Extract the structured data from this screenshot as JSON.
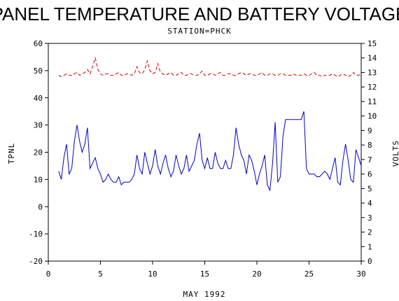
{
  "chart_data": {
    "type": "line",
    "title": "PANEL TEMPERATURE AND BATTERY VOLTAGE",
    "subtitle": "STATION=PHCK",
    "xlabel": "MAY 1992",
    "ylabel_left": "TPNL",
    "ylabel_right": "VOLTS",
    "xlim": [
      0,
      30
    ],
    "ylim_left": [
      -20,
      60
    ],
    "ylim_right": [
      0,
      15
    ],
    "x_ticks": [
      0,
      5,
      10,
      15,
      20,
      25,
      30
    ],
    "y_left_ticks": [
      -20,
      -10,
      0,
      10,
      20,
      30,
      40,
      50,
      60
    ],
    "y_right_ticks": [
      0,
      1,
      2,
      3,
      4,
      5,
      6,
      7,
      8,
      9,
      10,
      11,
      12,
      13,
      14,
      15
    ],
    "grid": false,
    "series": [
      {
        "axis": "left",
        "color": "#0000cc",
        "style": "solid",
        "x": [
          1.0,
          1.25,
          1.5,
          1.75,
          2.0,
          2.25,
          2.5,
          2.75,
          3.0,
          3.25,
          3.5,
          3.75,
          4.0,
          4.25,
          4.5,
          4.75,
          5.0,
          5.25,
          5.5,
          5.75,
          6.0,
          6.25,
          6.5,
          6.75,
          7.0,
          7.25,
          7.5,
          7.75,
          8.0,
          8.25,
          8.5,
          8.75,
          9.0,
          9.25,
          9.5,
          9.75,
          10.0,
          10.25,
          10.5,
          10.75,
          11.0,
          11.25,
          11.5,
          11.75,
          12.0,
          12.25,
          12.5,
          12.75,
          13.0,
          13.25,
          13.5,
          13.75,
          14.0,
          14.25,
          14.5,
          14.75,
          15.0,
          15.25,
          15.5,
          15.75,
          16.0,
          16.25,
          16.5,
          16.75,
          17.0,
          17.25,
          17.5,
          17.75,
          18.0,
          18.25,
          18.5,
          18.75,
          19.0,
          19.25,
          19.5,
          19.75,
          20.0,
          20.25,
          20.5,
          20.75,
          21.0,
          21.25,
          21.5,
          21.75,
          22.0,
          22.25,
          22.5,
          22.75,
          23.0,
          23.25,
          23.5,
          23.75,
          24.0,
          24.25,
          24.5,
          24.75,
          25.0,
          25.25,
          25.5,
          25.75,
          26.0,
          26.25,
          26.5,
          26.75,
          27.0,
          27.25,
          27.5,
          27.75,
          28.0,
          28.25,
          28.5,
          28.75,
          29.0,
          29.25,
          29.5,
          29.75,
          30.0
        ],
        "y": [
          13,
          10,
          18,
          23,
          12,
          14,
          24,
          30,
          24,
          20,
          23,
          29,
          14,
          16,
          18,
          14,
          12,
          9,
          10,
          12,
          10,
          9,
          9,
          11,
          8,
          9,
          9,
          9,
          10,
          12,
          19,
          14,
          12,
          20,
          16,
          12,
          15,
          21,
          15,
          12,
          16,
          19,
          14,
          11,
          13,
          19,
          15,
          12,
          14,
          19,
          13,
          15,
          17,
          23,
          27,
          17,
          14,
          18,
          14,
          14,
          20,
          16,
          14,
          14,
          17,
          14,
          14,
          19,
          29,
          23,
          19,
          17,
          12,
          19,
          17,
          13,
          8,
          12,
          15,
          19,
          8,
          6,
          16,
          31,
          9,
          11,
          26,
          32,
          32,
          32,
          32,
          32,
          32,
          32,
          35,
          14,
          12,
          12,
          12,
          11,
          11,
          12,
          13,
          12,
          10,
          14,
          18,
          9,
          8,
          17,
          23,
          17,
          10,
          9,
          21,
          18,
          15
        ],
        "name": ""
      },
      {
        "axis": "right",
        "color": "#dd0000",
        "style": "dashed",
        "x": [
          1.0,
          1.25,
          1.5,
          1.75,
          2.0,
          2.25,
          2.5,
          2.75,
          3.0,
          3.25,
          3.5,
          3.75,
          4.0,
          4.25,
          4.5,
          4.75,
          5.0,
          5.25,
          5.5,
          5.75,
          6.0,
          6.25,
          6.5,
          6.75,
          7.0,
          7.25,
          7.5,
          7.75,
          8.0,
          8.25,
          8.5,
          8.75,
          9.0,
          9.25,
          9.5,
          9.75,
          10.0,
          10.25,
          10.5,
          10.75,
          11.0,
          11.25,
          11.5,
          11.75,
          12.0,
          12.25,
          12.5,
          12.75,
          13.0,
          13.25,
          13.5,
          13.75,
          14.0,
          14.25,
          14.5,
          14.75,
          15.0,
          15.25,
          15.5,
          15.75,
          16.0,
          16.25,
          16.5,
          16.75,
          17.0,
          17.25,
          17.5,
          17.75,
          18.0,
          18.25,
          18.5,
          18.75,
          19.0,
          19.25,
          19.5,
          19.75,
          20.0,
          20.25,
          20.5,
          20.75,
          21.0,
          21.25,
          21.5,
          21.75,
          22.0,
          22.25,
          22.5,
          22.75,
          23.0,
          23.25,
          23.5,
          23.75,
          24.0,
          24.25,
          24.5,
          24.75,
          25.0,
          25.25,
          25.5,
          25.75,
          26.0,
          26.25,
          26.5,
          26.75,
          27.0,
          27.25,
          27.5,
          27.75,
          28.0,
          28.25,
          28.5,
          28.75,
          29.0,
          29.25,
          29.5,
          29.75,
          30.0
        ],
        "y": [
          12.8,
          12.7,
          12.8,
          12.9,
          12.8,
          12.8,
          12.9,
          13.0,
          12.8,
          12.9,
          13.0,
          13.2,
          12.9,
          13.4,
          14.0,
          13.2,
          12.9,
          12.8,
          12.9,
          12.9,
          12.8,
          12.8,
          12.9,
          13.0,
          12.8,
          12.8,
          12.9,
          12.9,
          12.8,
          12.9,
          13.4,
          13.0,
          12.9,
          13.2,
          13.8,
          13.1,
          12.9,
          13.0,
          13.6,
          13.0,
          12.9,
          12.8,
          12.9,
          13.0,
          12.8,
          12.8,
          12.9,
          13.0,
          12.8,
          12.8,
          12.9,
          12.9,
          12.8,
          12.8,
          12.9,
          13.1,
          12.8,
          12.8,
          12.9,
          12.9,
          12.8,
          12.9,
          13.0,
          12.8,
          12.8,
          12.9,
          12.9,
          12.8,
          12.8,
          12.9,
          13.0,
          12.9,
          12.8,
          12.9,
          12.9,
          12.8,
          12.8,
          12.9,
          13.0,
          12.8,
          12.8,
          12.9,
          12.9,
          12.8,
          12.8,
          12.9,
          12.9,
          12.8,
          12.8,
          12.8,
          12.9,
          12.8,
          12.8,
          12.8,
          12.9,
          12.8,
          12.8,
          12.9,
          13.0,
          12.8,
          12.8,
          12.7,
          12.8,
          12.8,
          12.8,
          12.9,
          12.8,
          12.7,
          12.8,
          12.9,
          12.8,
          12.7,
          12.8,
          13.0,
          12.8,
          12.8,
          12.9
        ],
        "name": ""
      }
    ]
  }
}
